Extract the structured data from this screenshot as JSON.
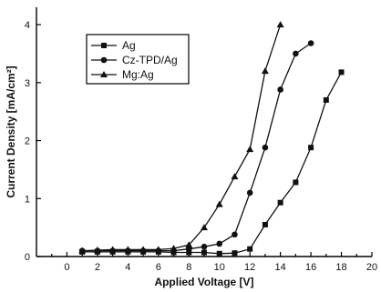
{
  "chart_data": {
    "type": "line",
    "xlabel": "Applied Voltage [V]",
    "ylabel": "Current Density [mA/cm²]",
    "xlim": [
      -2,
      20
    ],
    "ylim": [
      0,
      4.3
    ],
    "x_ticks": [
      0,
      2,
      4,
      6,
      8,
      10,
      12,
      14,
      16,
      18,
      20
    ],
    "y_ticks": [
      0,
      1,
      2,
      3,
      4
    ],
    "legend_position": "top-left",
    "grid": false,
    "series": [
      {
        "name": "Ag",
        "marker": "square",
        "x": [
          1,
          2,
          3,
          4,
          5,
          6,
          7,
          8,
          9,
          10,
          11,
          12,
          13,
          14,
          15,
          16,
          17,
          18
        ],
        "y": [
          0.08,
          0.08,
          0.08,
          0.08,
          0.08,
          0.08,
          0.07,
          0.07,
          0.07,
          0.05,
          0.06,
          0.13,
          0.55,
          0.93,
          1.28,
          1.88,
          2.7,
          3.18
        ]
      },
      {
        "name": "Cz-TPD/Ag",
        "marker": "circle",
        "x": [
          1,
          2,
          3,
          4,
          5,
          6,
          7,
          8,
          9,
          10,
          11,
          12,
          13,
          14,
          15,
          16
        ],
        "y": [
          0.1,
          0.1,
          0.1,
          0.1,
          0.1,
          0.1,
          0.1,
          0.13,
          0.17,
          0.22,
          0.38,
          1.1,
          1.88,
          2.88,
          3.5,
          3.68
        ]
      },
      {
        "name": "Mg:Ag",
        "marker": "triangle",
        "x": [
          1,
          2,
          3,
          4,
          5,
          6,
          7,
          8,
          9,
          10,
          11,
          12,
          13,
          14
        ],
        "y": [
          0.1,
          0.11,
          0.12,
          0.12,
          0.12,
          0.12,
          0.14,
          0.2,
          0.5,
          0.9,
          1.38,
          1.85,
          3.2,
          4.0
        ]
      }
    ]
  }
}
